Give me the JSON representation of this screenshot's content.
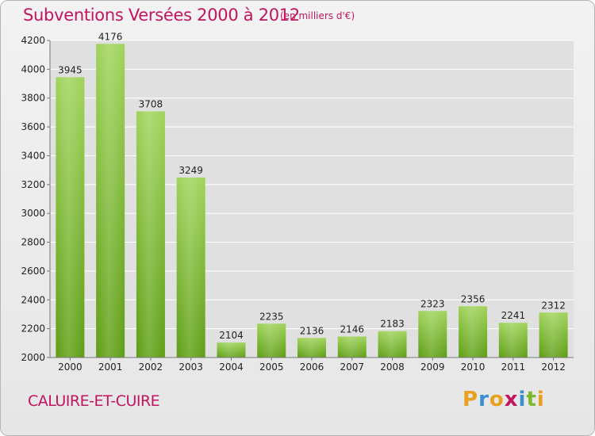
{
  "header": {
    "title": "Subventions Versées 2000 à 2012",
    "unit_note": "(en milliers d'€)"
  },
  "footer": {
    "commune": "CALUIRE-ET-CUIRE",
    "logo_text": "Proxiti",
    "logo_letters": [
      "P",
      "r",
      "o",
      "x",
      "i",
      "t",
      "i"
    ],
    "logo_colors": [
      "#e8a020",
      "#3a8fd0",
      "#e8a020",
      "#c0155f",
      "#3a8fd0",
      "#7ab82e",
      "#e8a020"
    ]
  },
  "colors": {
    "title": "#c0155f",
    "bar_top": "#9fd35a",
    "bar_bottom": "#5e9e14",
    "grid": "#ffffff"
  },
  "chart_data": {
    "type": "bar",
    "title": "Subventions Versées 2000 à 2012",
    "subtitle": "(en milliers d'€)",
    "categories": [
      "2000",
      "2001",
      "2002",
      "2003",
      "2004",
      "2005",
      "2006",
      "2007",
      "2008",
      "2009",
      "2010",
      "2011",
      "2012"
    ],
    "values": [
      3945,
      4176,
      3708,
      3249,
      2104,
      2235,
      2136,
      2146,
      2183,
      2323,
      2356,
      2241,
      2312
    ],
    "ylim": [
      2000,
      4200
    ],
    "yticks": [
      2000,
      2200,
      2400,
      2600,
      2800,
      3000,
      3200,
      3400,
      3600,
      3800,
      4000,
      4200
    ],
    "grid": true,
    "xlabel": "",
    "ylabel": ""
  }
}
